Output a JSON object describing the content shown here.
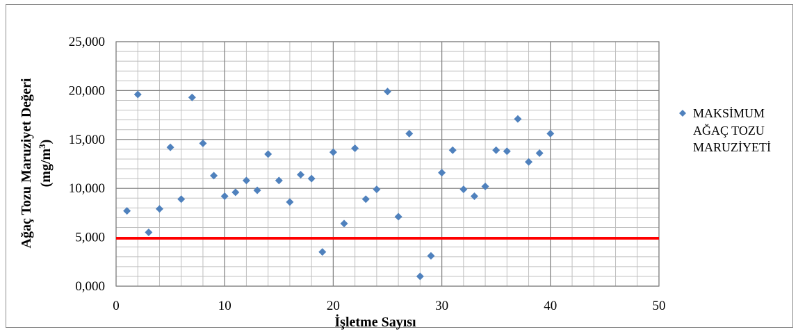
{
  "chart_data": {
    "type": "scatter",
    "xlabel": "İşletme Sayısı",
    "ylabel_line1": "Ağaç Tozu Maruziyet Değeri",
    "ylabel_line2_prefix": "(mg/m",
    "ylabel_line2_sup": "3",
    "ylabel_line2_suffix": ")",
    "xlim": [
      0,
      50
    ],
    "ylim": [
      0,
      25
    ],
    "x_ticks": [
      0,
      10,
      20,
      30,
      40,
      50
    ],
    "x_tick_labels": [
      "0",
      "10",
      "20",
      "30",
      "40",
      "50"
    ],
    "y_ticks": [
      0,
      5,
      10,
      15,
      20,
      25
    ],
    "y_tick_labels": [
      "0,000",
      "5,000",
      "10,000",
      "15,000",
      "20,000",
      "25,000"
    ],
    "grid": true,
    "legend_position": "right",
    "series": [
      {
        "name": "MAKSİMUM AĞAÇ TOZU MARUZİYETİ",
        "legend_lines": [
          "MAKSİMUM",
          "AĞAÇ TOZU",
          "MARUZİYETİ"
        ],
        "color": "#4f81bd",
        "marker": "diamond",
        "x": [
          1,
          2,
          3,
          4,
          5,
          6,
          7,
          8,
          9,
          10,
          11,
          12,
          13,
          14,
          15,
          16,
          17,
          18,
          19,
          20,
          21,
          22,
          23,
          24,
          25,
          26,
          27,
          28,
          29,
          30,
          31,
          32,
          33,
          34,
          35,
          36,
          37,
          38,
          39,
          40
        ],
        "y": [
          7.7,
          19.6,
          5.5,
          7.9,
          14.2,
          8.9,
          19.3,
          14.6,
          11.3,
          9.2,
          9.6,
          10.8,
          9.8,
          13.5,
          10.8,
          8.6,
          11.4,
          11.0,
          3.5,
          13.7,
          6.4,
          14.1,
          8.9,
          9.9,
          19.9,
          7.1,
          15.6,
          1.0,
          3.1,
          11.6,
          13.9,
          9.9,
          9.2,
          10.2,
          13.9,
          13.8,
          17.1,
          12.7,
          13.6,
          15.6
        ]
      }
    ],
    "reference_line": {
      "y": 4.9,
      "color": "#ff0000"
    },
    "colors": {
      "grid_major": "#808080",
      "grid_minor": "#bfbfbf",
      "frame": "#8c8c8c"
    }
  }
}
